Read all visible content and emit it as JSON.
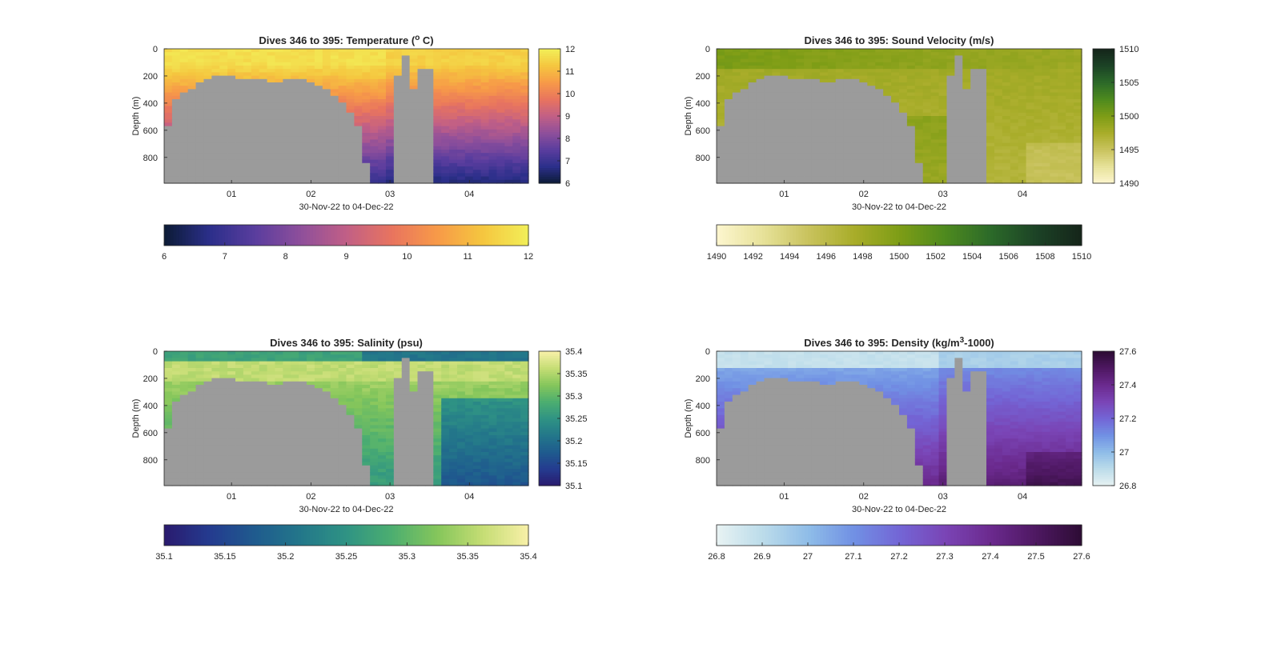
{
  "figure": {
    "background": "#ffffff",
    "mask_color": "#9b9b9b"
  },
  "chart_data": [
    {
      "type": "heatmap",
      "title_html": [
        "Dives 346 to 395: Temperature (",
        "o",
        " C)"
      ],
      "title_parts": {
        "before": "Dives 346 to 395: Temperature (",
        "sup": "o",
        "after": " C)"
      },
      "xlabel": "30-Nov-22 to 04-Dec-22",
      "ylabel": "Depth (m)",
      "x_ticks": [
        "01",
        "02",
        "03",
        "04"
      ],
      "y_ticks": [
        "0",
        "200",
        "400",
        "600",
        "800"
      ],
      "ylim": [
        0,
        990
      ],
      "variable": "temperature",
      "surface_value": 11.6,
      "deep_value": 7.4,
      "colormap": [
        "#0c1b35",
        "#2b2f8a",
        "#5a3d9e",
        "#8e4f9b",
        "#c15f86",
        "#e8745f",
        "#f79a48",
        "#f5c63f",
        "#f2ef58"
      ],
      "clim": [
        6,
        12
      ],
      "vertical_cbar_ticks": [
        "6",
        "7",
        "8",
        "9",
        "10",
        "11",
        "12"
      ],
      "horizontal_cbar_ticks": [
        "6",
        "7",
        "8",
        "9",
        "10",
        "11",
        "12"
      ]
    },
    {
      "type": "heatmap",
      "title_parts": {
        "before": "Dives 346 to 395: Sound Velocity (m/s)",
        "sup": "",
        "after": ""
      },
      "xlabel": "30-Nov-22 to 04-Dec-22",
      "ylabel": "Depth (m)",
      "x_ticks": [
        "01",
        "02",
        "03",
        "04"
      ],
      "y_ticks": [
        "0",
        "200",
        "400",
        "600",
        "800"
      ],
      "ylim": [
        0,
        990
      ],
      "variable": "sound_velocity",
      "surface_value": 1499.5,
      "deep_value": 1497.0,
      "colormap": [
        "#fdf6cf",
        "#e7e29a",
        "#c9c35e",
        "#a9ad2a",
        "#7e9d16",
        "#4e8a1e",
        "#2c6a29",
        "#1c4326",
        "#15251a"
      ],
      "clim": [
        1490,
        1510
      ],
      "vertical_cbar_ticks": [
        "1490",
        "1495",
        "1500",
        "1505",
        "1510"
      ],
      "horizontal_cbar_ticks": [
        "1490",
        "1492",
        "1494",
        "1496",
        "1498",
        "1500",
        "1502",
        "1504",
        "1506",
        "1508",
        "1510"
      ]
    },
    {
      "type": "heatmap",
      "title_parts": {
        "before": "Dives 346 to 395: Salinity (psu)",
        "sup": "",
        "after": ""
      },
      "xlabel": "30-Nov-22 to 04-Dec-22",
      "ylabel": "Depth (m)",
      "x_ticks": [
        "01",
        "02",
        "03",
        "04"
      ],
      "y_ticks": [
        "0",
        "200",
        "400",
        "600",
        "800"
      ],
      "ylim": [
        0,
        990
      ],
      "variable": "salinity",
      "surface_value": 35.22,
      "deep_value": 35.28,
      "colormap": [
        "#2a1a6e",
        "#243b8f",
        "#1f5b8e",
        "#23778a",
        "#2f9384",
        "#4cae70",
        "#85c65b",
        "#c5dd74",
        "#f8f0a8"
      ],
      "clim": [
        35.1,
        35.4
      ],
      "vertical_cbar_ticks": [
        "35.1",
        "35.15",
        "35.2",
        "35.25",
        "35.3",
        "35.35",
        "35.4"
      ],
      "horizontal_cbar_ticks": [
        "35.1",
        "35.15",
        "35.2",
        "35.25",
        "35.3",
        "35.35",
        "35.4"
      ]
    },
    {
      "type": "heatmap",
      "title_parts": {
        "before": "Dives 346 to 395: Density (kg/m",
        "sup": "3",
        "after": "-1000)"
      },
      "xlabel": "30-Nov-22 to 04-Dec-22",
      "ylabel": "Depth (m)",
      "x_ticks": [
        "01",
        "02",
        "03",
        "04"
      ],
      "y_ticks": [
        "0",
        "200",
        "400",
        "600",
        "800"
      ],
      "ylim": [
        0,
        990
      ],
      "variable": "density",
      "surface_value": 26.9,
      "deep_value": 27.4,
      "colormap": [
        "#e8f3f3",
        "#bcdcea",
        "#8fbde8",
        "#7191e4",
        "#7366d6",
        "#7a45b6",
        "#6b2a8e",
        "#4e1862",
        "#2d0c34"
      ],
      "clim": [
        26.8,
        27.6
      ],
      "vertical_cbar_ticks": [
        "26.8",
        "27",
        "27.2",
        "27.4",
        "27.6"
      ],
      "horizontal_cbar_ticks": [
        "26.8",
        "26.9",
        "27",
        "27.1",
        "27.2",
        "27.3",
        "27.4",
        "27.5",
        "27.6"
      ]
    }
  ]
}
